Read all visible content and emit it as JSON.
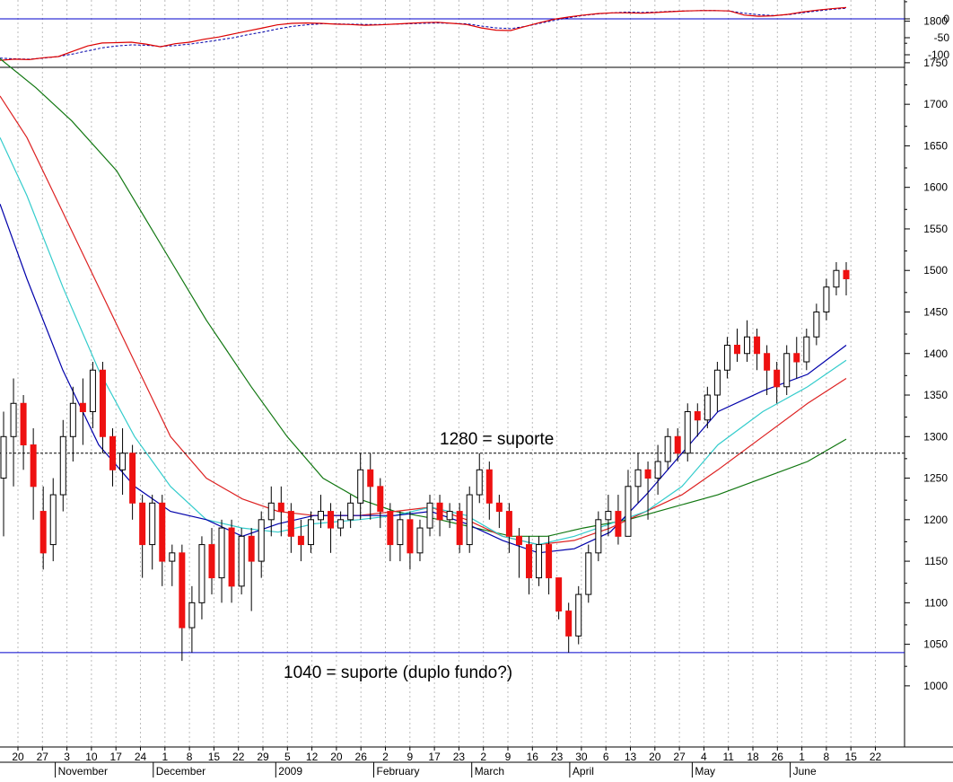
{
  "chart_data": {
    "type": "candlestick",
    "colors": {
      "up": "#ffffff",
      "down": "#ee1111",
      "down_alt": "#111111",
      "ma_short": "#0000aa",
      "ma_mid": "#33cccc",
      "ma_long": "#dd2222",
      "ma_longest": "#117711",
      "support": "#0000cc",
      "osc_fast": "#dd0000",
      "osc_slow": "#0000aa"
    },
    "price_axis": {
      "ticks": [
        1000,
        1050,
        1100,
        1150,
        1200,
        1250,
        1300,
        1350,
        1400,
        1450,
        1500,
        1550,
        1600,
        1650,
        1700,
        1750,
        1800
      ],
      "labels": [
        "1000",
        "1050",
        "1100",
        "1150",
        "1200",
        "1250",
        "1300",
        "1350",
        "1400",
        "1450",
        "1500",
        "1550",
        "1600",
        "1650",
        "1700",
        "1750",
        "1800"
      ],
      "range": [
        970,
        1880
      ]
    },
    "oscillator_axis": {
      "ticks": [
        0,
        -50,
        -100
      ],
      "labels": [
        "0",
        "-50",
        "-100"
      ],
      "range": [
        -150,
        40
      ]
    },
    "x_axis": {
      "day_labels": [
        "20",
        "27",
        "3",
        "10",
        "17",
        "24",
        "1",
        "8",
        "15",
        "22",
        "29",
        "5",
        "12",
        "20",
        "26",
        "2",
        "9",
        "17",
        "23",
        "2",
        "9",
        "16",
        "23",
        "30",
        "6",
        "13",
        "20",
        "27",
        "4",
        "11",
        "18",
        "26",
        "1",
        "8",
        "15",
        "22"
      ],
      "month_labels": [
        {
          "label": "November",
          "week": 2
        },
        {
          "label": "December",
          "week": 6
        },
        {
          "label": "2009",
          "week": 11
        },
        {
          "label": "February",
          "week": 15
        },
        {
          "label": "March",
          "week": 19
        },
        {
          "label": "April",
          "week": 23
        },
        {
          "label": "May",
          "week": 28
        },
        {
          "label": "June",
          "week": 32
        }
      ]
    },
    "support_lines": [
      {
        "value": 1280,
        "label": "1280 = suporte",
        "style": "dashed"
      },
      {
        "value": 1040,
        "label": "1040 = suporte (duplo fundo?)",
        "style": "solid"
      }
    ],
    "oscillator_zero_line": 0,
    "oscillator": {
      "fast": [
        -110,
        -107,
        -108,
        -103,
        -100,
        -86,
        -72,
        -64,
        -63,
        -62,
        -67,
        -74,
        -66,
        -62,
        -54,
        -48,
        -40,
        -32,
        -24,
        -16,
        -12,
        -11,
        -12,
        -14,
        -15,
        -17,
        -16,
        -14,
        -12,
        -10,
        -9,
        -12,
        -15,
        -24,
        -30,
        -31,
        -20,
        -10,
        -1,
        5,
        10,
        14,
        16,
        16,
        15,
        17,
        19,
        21,
        22,
        22,
        21,
        10,
        7,
        8,
        12,
        18,
        23,
        27,
        30
      ],
      "slow": [
        -104,
        -106,
        -107,
        -104,
        -100,
        -93,
        -85,
        -77,
        -72,
        -69,
        -70,
        -73,
        -71,
        -67,
        -62,
        -56,
        -50,
        -42,
        -35,
        -27,
        -20,
        -16,
        -13,
        -13,
        -14,
        -15,
        -15,
        -14,
        -13,
        -12,
        -11,
        -12,
        -13,
        -19,
        -24,
        -26,
        -20,
        -12,
        -4,
        3,
        9,
        13,
        16,
        18,
        17,
        18,
        20,
        21,
        22,
        22,
        21,
        15,
        11,
        9,
        11,
        16,
        21,
        25,
        28
      ]
    },
    "candles": [
      [
        1250,
        1300,
        1180,
        1330
      ],
      [
        1300,
        1340,
        1240,
        1370
      ],
      [
        1340,
        1290,
        1260,
        1350
      ],
      [
        1290,
        1240,
        1200,
        1310
      ],
      [
        1210,
        1160,
        1140,
        1240
      ],
      [
        1170,
        1230,
        1150,
        1250
      ],
      [
        1230,
        1300,
        1210,
        1320
      ],
      [
        1300,
        1340,
        1270,
        1360
      ],
      [
        1340,
        1330,
        1290,
        1370
      ],
      [
        1330,
        1380,
        1310,
        1390
      ],
      [
        1380,
        1300,
        1280,
        1390
      ],
      [
        1300,
        1260,
        1240,
        1310
      ],
      [
        1260,
        1280,
        1230,
        1310
      ],
      [
        1280,
        1220,
        1200,
        1290
      ],
      [
        1220,
        1170,
        1130,
        1230
      ],
      [
        1170,
        1220,
        1140,
        1230
      ],
      [
        1220,
        1150,
        1120,
        1230
      ],
      [
        1150,
        1160,
        1120,
        1170
      ],
      [
        1160,
        1070,
        1030,
        1170
      ],
      [
        1070,
        1100,
        1040,
        1120
      ],
      [
        1100,
        1170,
        1080,
        1180
      ],
      [
        1170,
        1130,
        1110,
        1190
      ],
      [
        1130,
        1190,
        1100,
        1200
      ],
      [
        1190,
        1120,
        1100,
        1200
      ],
      [
        1120,
        1180,
        1110,
        1190
      ],
      [
        1180,
        1150,
        1090,
        1190
      ],
      [
        1150,
        1200,
        1130,
        1210
      ],
      [
        1200,
        1220,
        1180,
        1240
      ],
      [
        1220,
        1210,
        1180,
        1240
      ],
      [
        1210,
        1180,
        1160,
        1220
      ],
      [
        1180,
        1170,
        1150,
        1200
      ],
      [
        1170,
        1200,
        1160,
        1210
      ],
      [
        1200,
        1210,
        1190,
        1230
      ],
      [
        1210,
        1190,
        1160,
        1220
      ],
      [
        1190,
        1200,
        1180,
        1210
      ],
      [
        1200,
        1220,
        1190,
        1230
      ],
      [
        1220,
        1260,
        1200,
        1280
      ],
      [
        1260,
        1240,
        1200,
        1280
      ],
      [
        1240,
        1210,
        1190,
        1250
      ],
      [
        1210,
        1170,
        1150,
        1220
      ],
      [
        1170,
        1200,
        1150,
        1210
      ],
      [
        1200,
        1160,
        1140,
        1210
      ],
      [
        1160,
        1190,
        1150,
        1200
      ],
      [
        1190,
        1220,
        1180,
        1230
      ],
      [
        1220,
        1200,
        1180,
        1230
      ],
      [
        1200,
        1210,
        1190,
        1220
      ],
      [
        1210,
        1170,
        1160,
        1220
      ],
      [
        1170,
        1230,
        1160,
        1240
      ],
      [
        1230,
        1260,
        1220,
        1280
      ],
      [
        1260,
        1220,
        1200,
        1270
      ],
      [
        1220,
        1210,
        1190,
        1230
      ],
      [
        1210,
        1180,
        1160,
        1220
      ],
      [
        1180,
        1170,
        1130,
        1190
      ],
      [
        1170,
        1130,
        1110,
        1180
      ],
      [
        1130,
        1170,
        1120,
        1180
      ],
      [
        1170,
        1130,
        1110,
        1180
      ],
      [
        1130,
        1090,
        1080,
        1130
      ],
      [
        1090,
        1060,
        1040,
        1100
      ],
      [
        1060,
        1110,
        1050,
        1120
      ],
      [
        1110,
        1160,
        1100,
        1170
      ],
      [
        1160,
        1200,
        1150,
        1210
      ],
      [
        1200,
        1210,
        1180,
        1230
      ],
      [
        1210,
        1180,
        1170,
        1230
      ],
      [
        1180,
        1240,
        1180,
        1260
      ],
      [
        1240,
        1260,
        1220,
        1280
      ],
      [
        1260,
        1250,
        1200,
        1270
      ],
      [
        1250,
        1270,
        1230,
        1290
      ],
      [
        1270,
        1300,
        1260,
        1310
      ],
      [
        1300,
        1280,
        1270,
        1310
      ],
      [
        1280,
        1330,
        1270,
        1340
      ],
      [
        1330,
        1320,
        1300,
        1340
      ],
      [
        1320,
        1350,
        1310,
        1360
      ],
      [
        1350,
        1380,
        1330,
        1390
      ],
      [
        1380,
        1410,
        1370,
        1420
      ],
      [
        1410,
        1400,
        1390,
        1430
      ],
      [
        1400,
        1420,
        1390,
        1440
      ],
      [
        1420,
        1400,
        1380,
        1430
      ],
      [
        1400,
        1380,
        1350,
        1410
      ],
      [
        1380,
        1360,
        1340,
        1390
      ],
      [
        1360,
        1400,
        1350,
        1410
      ],
      [
        1400,
        1390,
        1370,
        1420
      ],
      [
        1390,
        1420,
        1380,
        1430
      ],
      [
        1420,
        1450,
        1410,
        1460
      ],
      [
        1450,
        1480,
        1440,
        1490
      ],
      [
        1480,
        1500,
        1470,
        1510
      ],
      [
        1500,
        1490,
        1470,
        1510
      ]
    ]
  }
}
